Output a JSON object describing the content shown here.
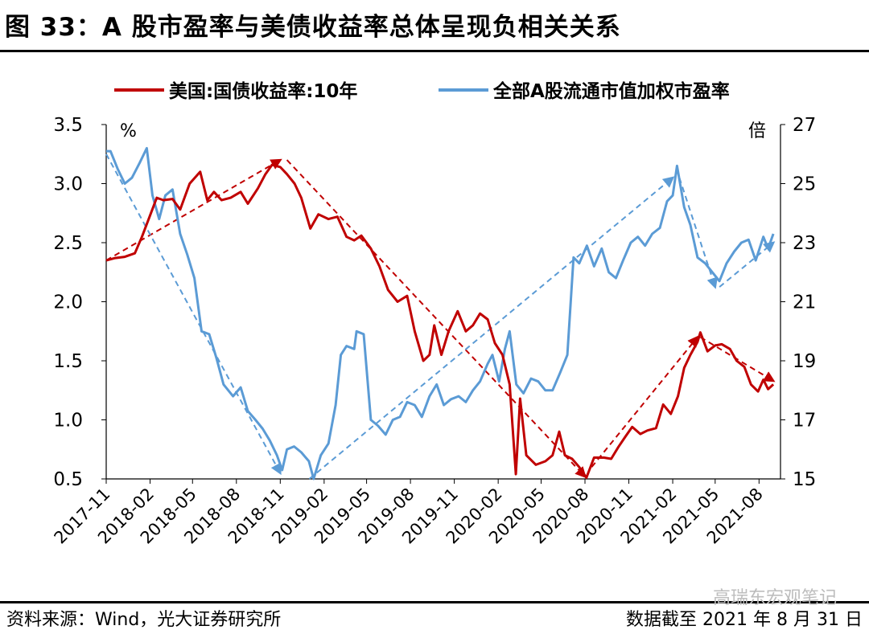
{
  "header": {
    "title": "图 33：A 股市盈率与美债收益率总体呈现负相关关系"
  },
  "footer": {
    "source": "资料来源：Wind，光大证券研究所",
    "cutoff": "数据截至 2021 年 8 月 31 日",
    "watermark": "高瑞东宏观笔记"
  },
  "chart_data": {
    "type": "line",
    "left_unit": "%",
    "right_unit": "倍",
    "y_left": {
      "min": 0.5,
      "max": 3.5,
      "ticks": [
        "3.5",
        "3.0",
        "2.5",
        "2.0",
        "1.5",
        "1.0",
        "0.5"
      ]
    },
    "y_right": {
      "min": 15,
      "max": 27,
      "ticks": [
        "27",
        "25",
        "23",
        "21",
        "19",
        "17",
        "15"
      ]
    },
    "x_range": [
      "2017-11-01",
      "2021-09-15"
    ],
    "x_ticks": [
      "2017-11",
      "2018-02",
      "2018-05",
      "2018-08",
      "2018-11",
      "2019-02",
      "2019-05",
      "2019-08",
      "2019-11",
      "2020-02",
      "2020-05",
      "2020-08",
      "2020-11",
      "2021-02",
      "2021-05",
      "2021-08"
    ],
    "grid": false,
    "legend_position": "top",
    "series": [
      {
        "name": "美国:国债收益率:10年",
        "axis": "left",
        "color": "#c00000",
        "points": [
          [
            "2017-11-01",
            2.35
          ],
          [
            "2017-11-20",
            2.37
          ],
          [
            "2017-12-10",
            2.38
          ],
          [
            "2017-12-31",
            2.41
          ],
          [
            "2018-01-15",
            2.55
          ],
          [
            "2018-01-31",
            2.72
          ],
          [
            "2018-02-15",
            2.88
          ],
          [
            "2018-03-01",
            2.86
          ],
          [
            "2018-03-20",
            2.87
          ],
          [
            "2018-04-05",
            2.78
          ],
          [
            "2018-04-25",
            3.0
          ],
          [
            "2018-05-17",
            3.1
          ],
          [
            "2018-06-01",
            2.86
          ],
          [
            "2018-06-15",
            2.93
          ],
          [
            "2018-07-01",
            2.86
          ],
          [
            "2018-07-20",
            2.88
          ],
          [
            "2018-08-10",
            2.93
          ],
          [
            "2018-08-25",
            2.83
          ],
          [
            "2018-09-15",
            2.96
          ],
          [
            "2018-10-01",
            3.08
          ],
          [
            "2018-10-15",
            3.16
          ],
          [
            "2018-11-01",
            3.14
          ],
          [
            "2018-11-15",
            3.08
          ],
          [
            "2018-12-01",
            3.0
          ],
          [
            "2018-12-15",
            2.88
          ],
          [
            "2019-01-03",
            2.62
          ],
          [
            "2019-01-20",
            2.74
          ],
          [
            "2019-02-10",
            2.7
          ],
          [
            "2019-03-01",
            2.72
          ],
          [
            "2019-03-20",
            2.55
          ],
          [
            "2019-04-05",
            2.52
          ],
          [
            "2019-04-20",
            2.56
          ],
          [
            "2019-05-10",
            2.45
          ],
          [
            "2019-05-28",
            2.3
          ],
          [
            "2019-06-15",
            2.1
          ],
          [
            "2019-07-05",
            2.0
          ],
          [
            "2019-07-25",
            2.05
          ],
          [
            "2019-08-10",
            1.75
          ],
          [
            "2019-08-28",
            1.5
          ],
          [
            "2019-09-10",
            1.55
          ],
          [
            "2019-09-20",
            1.8
          ],
          [
            "2019-10-05",
            1.55
          ],
          [
            "2019-10-20",
            1.75
          ],
          [
            "2019-11-08",
            1.92
          ],
          [
            "2019-11-25",
            1.75
          ],
          [
            "2019-12-10",
            1.8
          ],
          [
            "2019-12-25",
            1.9
          ],
          [
            "2020-01-10",
            1.85
          ],
          [
            "2020-01-25",
            1.65
          ],
          [
            "2020-02-10",
            1.55
          ],
          [
            "2020-02-25",
            1.3
          ],
          [
            "2020-03-09",
            0.54
          ],
          [
            "2020-03-18",
            1.18
          ],
          [
            "2020-03-31",
            0.7
          ],
          [
            "2020-04-20",
            0.62
          ],
          [
            "2020-05-10",
            0.65
          ],
          [
            "2020-05-25",
            0.7
          ],
          [
            "2020-06-08",
            0.9
          ],
          [
            "2020-06-20",
            0.7
          ],
          [
            "2020-07-05",
            0.67
          ],
          [
            "2020-07-20",
            0.6
          ],
          [
            "2020-08-04",
            0.51
          ],
          [
            "2020-08-20",
            0.68
          ],
          [
            "2020-09-10",
            0.68
          ],
          [
            "2020-09-25",
            0.67
          ],
          [
            "2020-10-10",
            0.77
          ],
          [
            "2020-10-25",
            0.86
          ],
          [
            "2020-11-08",
            0.94
          ],
          [
            "2020-11-25",
            0.88
          ],
          [
            "2020-12-10",
            0.91
          ],
          [
            "2020-12-28",
            0.93
          ],
          [
            "2021-01-12",
            1.13
          ],
          [
            "2021-01-28",
            1.05
          ],
          [
            "2021-02-12",
            1.2
          ],
          [
            "2021-02-25",
            1.44
          ],
          [
            "2021-03-10",
            1.55
          ],
          [
            "2021-03-25",
            1.66
          ],
          [
            "2021-03-31",
            1.74
          ],
          [
            "2021-04-15",
            1.58
          ],
          [
            "2021-05-01",
            1.63
          ],
          [
            "2021-05-15",
            1.64
          ],
          [
            "2021-06-01",
            1.6
          ],
          [
            "2021-06-15",
            1.5
          ],
          [
            "2021-07-01",
            1.45
          ],
          [
            "2021-07-15",
            1.3
          ],
          [
            "2021-07-30",
            1.24
          ],
          [
            "2021-08-10",
            1.34
          ],
          [
            "2021-08-20",
            1.26
          ],
          [
            "2021-08-31",
            1.3
          ]
        ]
      },
      {
        "name": "全部A股流通市值加权市盈率",
        "axis": "right",
        "color": "#5b9bd5",
        "points": [
          [
            "2017-11-01",
            26.1
          ],
          [
            "2017-11-10",
            26.1
          ],
          [
            "2017-11-25",
            25.5
          ],
          [
            "2017-12-10",
            25.0
          ],
          [
            "2017-12-25",
            25.2
          ],
          [
            "2018-01-10",
            25.7
          ],
          [
            "2018-01-25",
            26.2
          ],
          [
            "2018-02-06",
            24.6
          ],
          [
            "2018-02-20",
            23.8
          ],
          [
            "2018-03-05",
            24.6
          ],
          [
            "2018-03-20",
            24.8
          ],
          [
            "2018-04-05",
            23.3
          ],
          [
            "2018-04-20",
            22.6
          ],
          [
            "2018-05-05",
            21.8
          ],
          [
            "2018-05-20",
            20.0
          ],
          [
            "2018-06-05",
            19.9
          ],
          [
            "2018-06-20",
            19.1
          ],
          [
            "2018-07-05",
            18.2
          ],
          [
            "2018-07-25",
            17.8
          ],
          [
            "2018-08-10",
            18.1
          ],
          [
            "2018-08-25",
            17.3
          ],
          [
            "2018-09-10",
            17.0
          ],
          [
            "2018-09-25",
            16.7
          ],
          [
            "2018-10-10",
            16.3
          ],
          [
            "2018-10-25",
            15.8
          ],
          [
            "2018-11-05",
            15.3
          ],
          [
            "2018-11-15",
            16.0
          ],
          [
            "2018-11-30",
            16.1
          ],
          [
            "2018-12-15",
            15.9
          ],
          [
            "2018-12-31",
            15.6
          ],
          [
            "2019-01-10",
            15.0
          ],
          [
            "2019-01-25",
            15.8
          ],
          [
            "2019-02-10",
            16.2
          ],
          [
            "2019-02-25",
            17.5
          ],
          [
            "2019-03-08",
            19.2
          ],
          [
            "2019-03-20",
            19.5
          ],
          [
            "2019-04-05",
            19.4
          ],
          [
            "2019-04-10",
            20.0
          ],
          [
            "2019-04-25",
            19.9
          ],
          [
            "2019-05-10",
            17.0
          ],
          [
            "2019-05-25",
            16.8
          ],
          [
            "2019-06-10",
            16.5
          ],
          [
            "2019-06-25",
            17.0
          ],
          [
            "2019-07-10",
            17.1
          ],
          [
            "2019-07-25",
            17.6
          ],
          [
            "2019-08-10",
            17.5
          ],
          [
            "2019-08-25",
            17.1
          ],
          [
            "2019-09-10",
            17.8
          ],
          [
            "2019-09-25",
            18.2
          ],
          [
            "2019-10-10",
            17.5
          ],
          [
            "2019-10-25",
            17.7
          ],
          [
            "2019-11-10",
            17.8
          ],
          [
            "2019-11-25",
            17.6
          ],
          [
            "2019-12-10",
            18.0
          ],
          [
            "2019-12-25",
            18.3
          ],
          [
            "2020-01-10",
            18.9
          ],
          [
            "2020-01-20",
            19.2
          ],
          [
            "2020-02-03",
            18.3
          ],
          [
            "2020-02-15",
            19.4
          ],
          [
            "2020-02-25",
            20.0
          ],
          [
            "2020-03-10",
            18.2
          ],
          [
            "2020-03-25",
            17.9
          ],
          [
            "2020-04-10",
            18.4
          ],
          [
            "2020-04-25",
            18.3
          ],
          [
            "2020-05-10",
            18.0
          ],
          [
            "2020-05-25",
            18.0
          ],
          [
            "2020-06-10",
            18.6
          ],
          [
            "2020-06-25",
            19.2
          ],
          [
            "2020-07-08",
            22.5
          ],
          [
            "2020-07-20",
            22.3
          ],
          [
            "2020-08-05",
            22.9
          ],
          [
            "2020-08-20",
            22.2
          ],
          [
            "2020-09-05",
            22.8
          ],
          [
            "2020-09-20",
            22.0
          ],
          [
            "2020-10-05",
            21.8
          ],
          [
            "2020-10-20",
            22.4
          ],
          [
            "2020-11-05",
            23.0
          ],
          [
            "2020-11-20",
            23.2
          ],
          [
            "2020-12-05",
            22.9
          ],
          [
            "2020-12-20",
            23.3
          ],
          [
            "2021-01-05",
            23.5
          ],
          [
            "2021-01-20",
            24.4
          ],
          [
            "2021-02-01",
            24.6
          ],
          [
            "2021-02-10",
            25.6
          ],
          [
            "2021-02-25",
            24.2
          ],
          [
            "2021-03-10",
            23.6
          ],
          [
            "2021-03-25",
            22.5
          ],
          [
            "2021-04-10",
            22.3
          ],
          [
            "2021-04-25",
            22.0
          ],
          [
            "2021-05-10",
            21.7
          ],
          [
            "2021-05-25",
            22.3
          ],
          [
            "2021-06-10",
            22.7
          ],
          [
            "2021-06-25",
            23.0
          ],
          [
            "2021-07-10",
            23.1
          ],
          [
            "2021-07-25",
            22.4
          ],
          [
            "2021-08-10",
            23.2
          ],
          [
            "2021-08-20",
            22.8
          ],
          [
            "2021-08-31",
            23.3
          ]
        ]
      }
    ],
    "trend_arrows": [
      {
        "series": "美国:国债收益率:10年",
        "axis": "left",
        "from": [
          "2017-11-01",
          2.35
        ],
        "to": [
          "2018-11-01",
          3.2
        ]
      },
      {
        "series": "美国:国债收益率:10年",
        "axis": "left",
        "from": [
          "2018-11-15",
          3.2
        ],
        "to": [
          "2020-08-01",
          0.52
        ]
      },
      {
        "series": "美国:国债收益率:10年",
        "axis": "left",
        "from": [
          "2020-08-15",
          0.6
        ],
        "to": [
          "2021-03-25",
          1.7
        ]
      },
      {
        "series": "美国:国债收益率:10年",
        "axis": "left",
        "from": [
          "2021-03-31",
          1.7
        ],
        "to": [
          "2021-08-31",
          1.33
        ]
      },
      {
        "series": "全部A股流通市值加权市盈率",
        "axis": "right",
        "from": [
          "2017-11-01",
          26.0
        ],
        "to": [
          "2018-11-01",
          15.2
        ]
      },
      {
        "series": "全部A股流通市值加权市盈率",
        "axis": "right",
        "from": [
          "2019-01-01",
          15.0
        ],
        "to": [
          "2021-02-01",
          25.2
        ]
      },
      {
        "series": "全部A股流通市值加权市盈率",
        "axis": "right",
        "from": [
          "2021-02-15",
          25.2
        ],
        "to": [
          "2021-05-01",
          21.5
        ]
      },
      {
        "series": "全部A股流通市值加权市盈率",
        "axis": "right",
        "from": [
          "2021-05-10",
          21.5
        ],
        "to": [
          "2021-08-31",
          23.0
        ]
      }
    ]
  }
}
